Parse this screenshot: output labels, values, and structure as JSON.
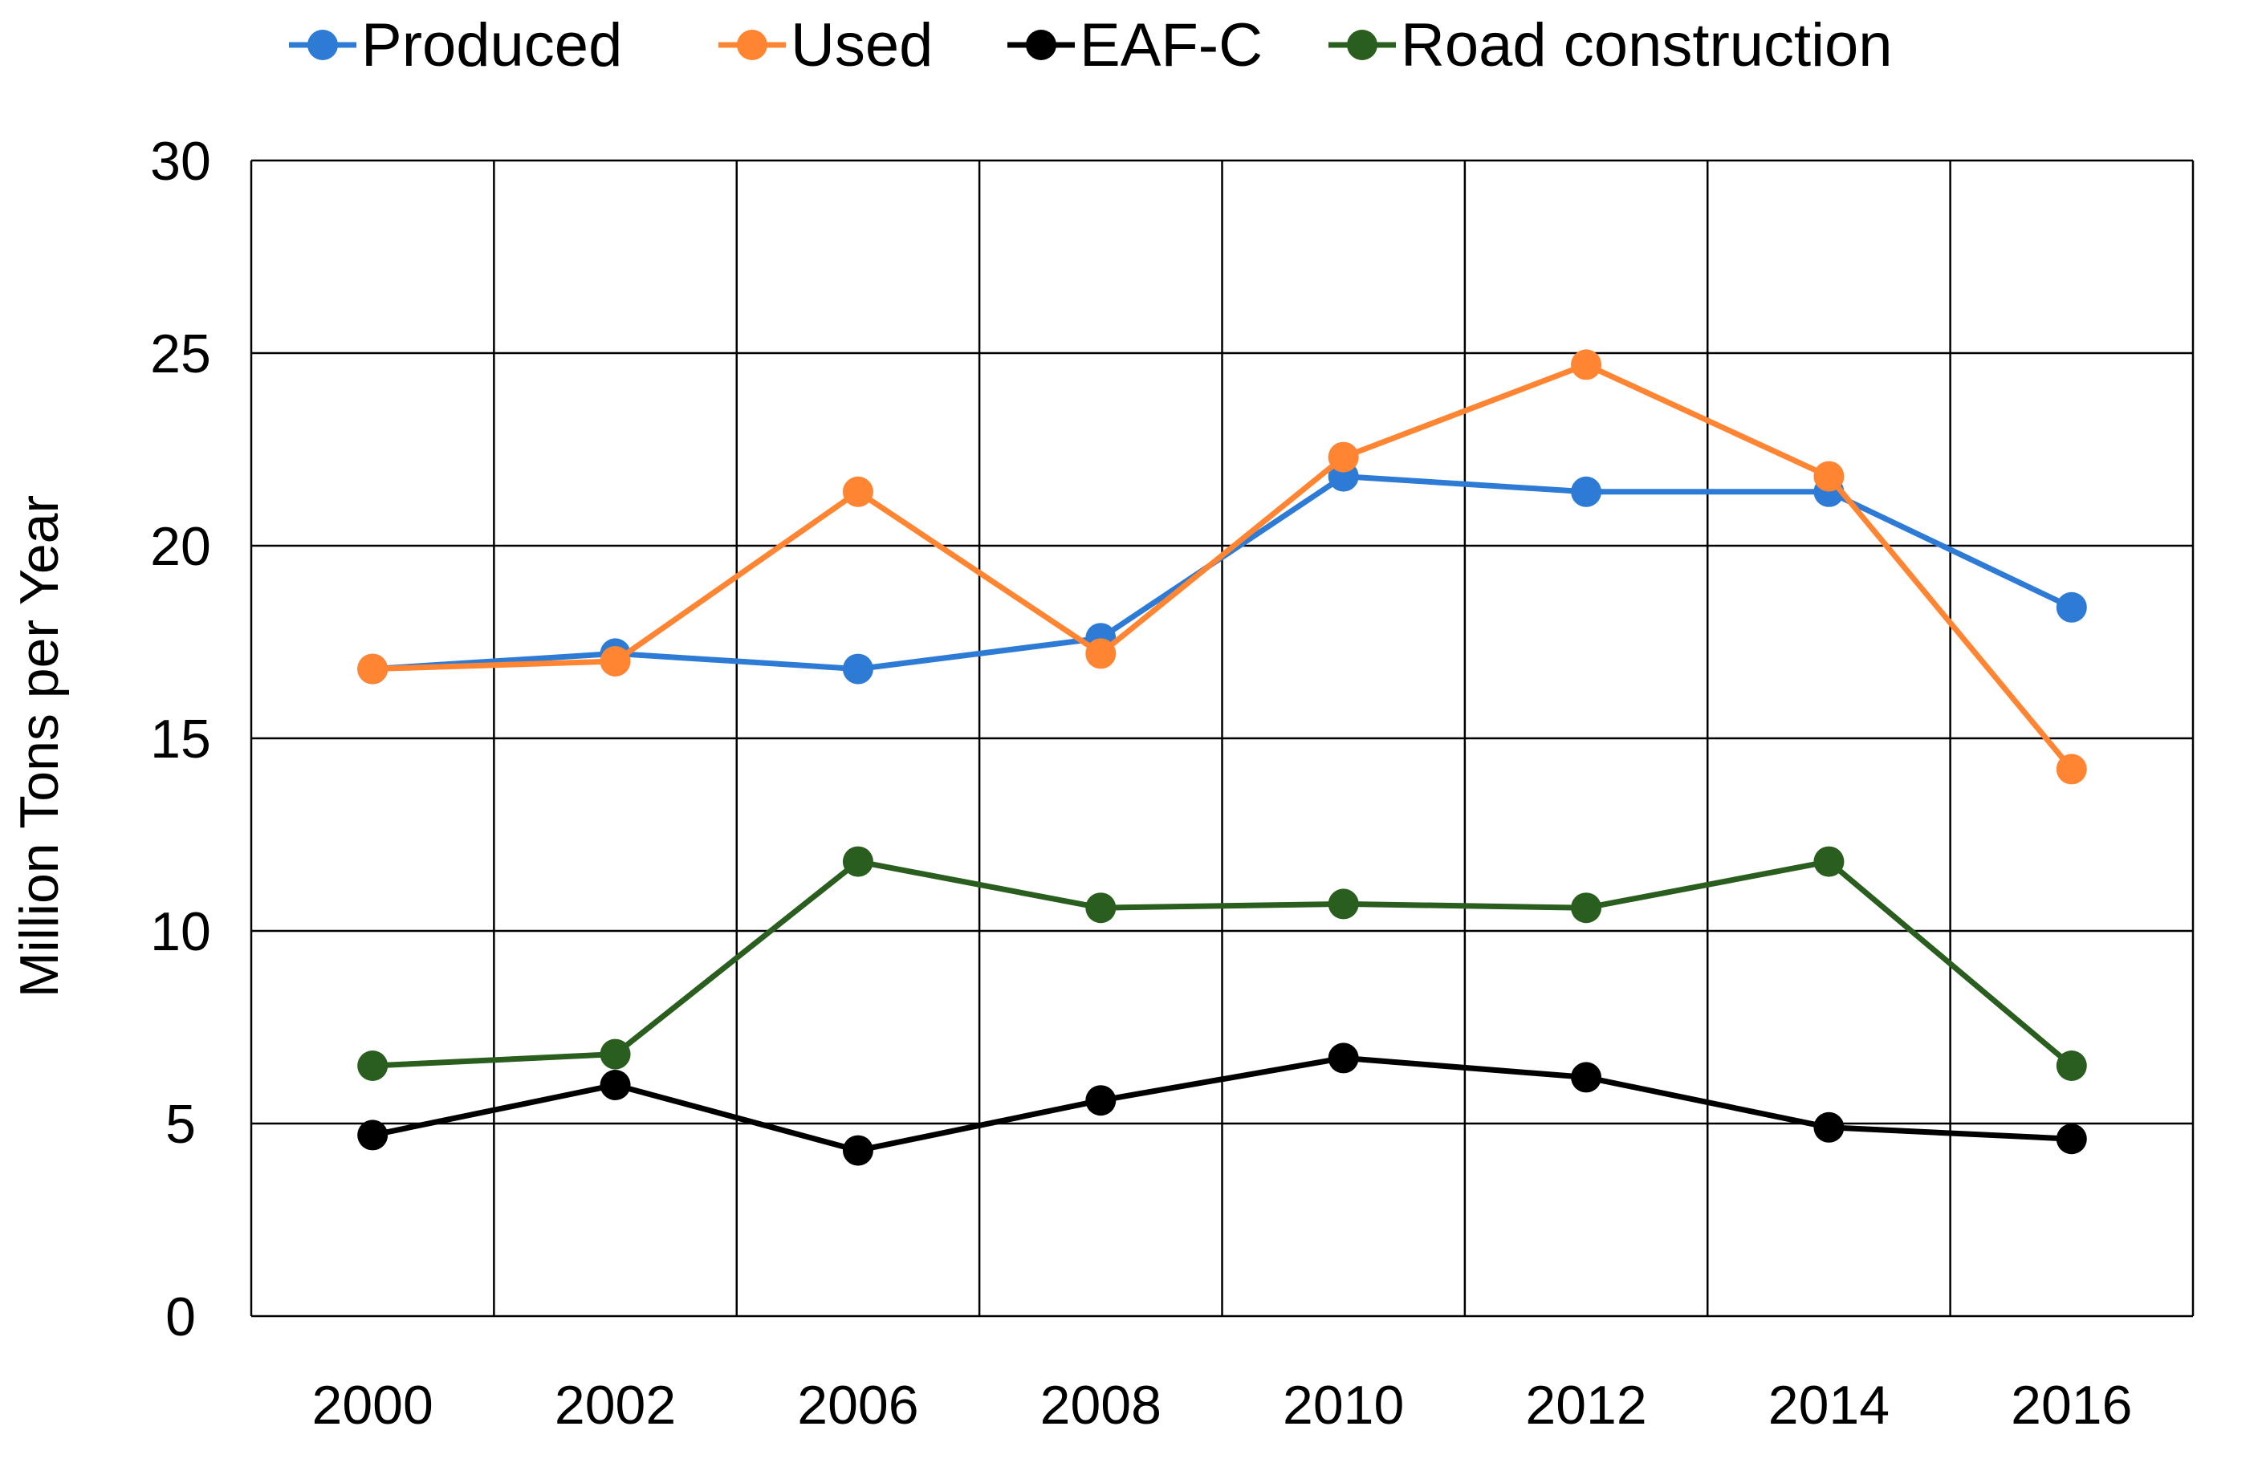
{
  "chart_data": {
    "type": "line",
    "title": "",
    "xlabel": "",
    "ylabel": "Million Tons per Year",
    "categories": [
      "2000",
      "2002",
      "2006",
      "2008",
      "2010",
      "2012",
      "2014",
      "2016"
    ],
    "ylim": [
      0,
      30
    ],
    "yticks": [
      "0",
      "5",
      "10",
      "15",
      "20",
      "25",
      "30"
    ],
    "grid": true,
    "legend_position": "top",
    "series": [
      {
        "name": "Produced",
        "color": "#2E7BD6",
        "values": [
          16.8,
          17.2,
          16.8,
          17.6,
          21.8,
          21.4,
          21.4,
          18.4
        ]
      },
      {
        "name": "Used",
        "color": "#FF8533",
        "values": [
          16.8,
          17.0,
          21.4,
          17.2,
          22.3,
          24.7,
          21.8,
          14.2
        ]
      },
      {
        "name": "EAF-C",
        "color": "#000000",
        "values": [
          4.7,
          6.0,
          4.3,
          5.6,
          6.7,
          6.2,
          4.9,
          4.6
        ]
      },
      {
        "name": "Road construction",
        "color": "#2A5E1E",
        "values": [
          6.5,
          6.8,
          11.8,
          10.6,
          10.7,
          10.6,
          11.8,
          6.5
        ]
      }
    ]
  }
}
